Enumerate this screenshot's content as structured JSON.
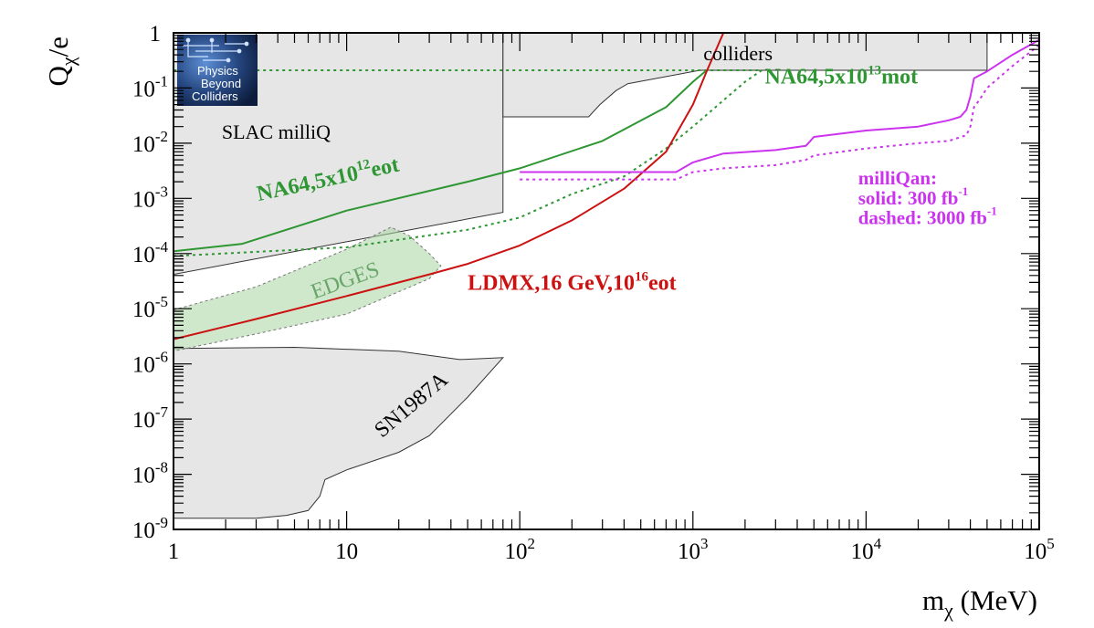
{
  "chart_data": {
    "type": "line",
    "title": "",
    "xlabel": {
      "base": "m",
      "sub": "χ",
      "tail": " (MeV)"
    },
    "ylabel": {
      "base": "Q",
      "sub": "χ",
      "tail": "/e"
    },
    "xscale": "log",
    "yscale": "log",
    "xlim": [
      1,
      100000
    ],
    "ylim": [
      1e-09,
      1
    ],
    "x_ticks": [
      {
        "value": 1,
        "base": "1",
        "exp": ""
      },
      {
        "value": 10,
        "base": "10",
        "exp": ""
      },
      {
        "value": 100,
        "base": "10",
        "exp": "2"
      },
      {
        "value": 1000,
        "base": "10",
        "exp": "3"
      },
      {
        "value": 10000,
        "base": "10",
        "exp": "4"
      },
      {
        "value": 100000,
        "base": "10",
        "exp": "5"
      }
    ],
    "y_ticks": [
      {
        "value": 1,
        "base": "1",
        "exp": ""
      },
      {
        "value": 0.1,
        "base": "10",
        "exp": "-1"
      },
      {
        "value": 0.01,
        "base": "10",
        "exp": "-2"
      },
      {
        "value": 0.001,
        "base": "10",
        "exp": "-3"
      },
      {
        "value": 0.0001,
        "base": "10",
        "exp": "-4"
      },
      {
        "value": 1e-05,
        "base": "10",
        "exp": "-5"
      },
      {
        "value": 1e-06,
        "base": "10",
        "exp": "-6"
      },
      {
        "value": 1e-07,
        "base": "10",
        "exp": "-7"
      },
      {
        "value": 1e-08,
        "base": "10",
        "exp": "-8"
      },
      {
        "value": 1e-09,
        "base": "10",
        "exp": "-9"
      }
    ],
    "regions": [
      {
        "name": "SLAC milliQ",
        "fill": "#e6e6e6",
        "stroke": "#333333",
        "opacity": 1,
        "points": [
          [
            1,
            1
          ],
          [
            80,
            1
          ],
          [
            80,
            0.00056
          ],
          [
            1,
            4.2e-05
          ]
        ]
      },
      {
        "name": "colliders",
        "fill": "#e6e6e6",
        "stroke": "#333333",
        "opacity": 1,
        "points": [
          [
            80,
            1
          ],
          [
            50000,
            1
          ],
          [
            50000,
            0.21
          ],
          [
            1100,
            0.21
          ],
          [
            420,
            0.12
          ],
          [
            360,
            0.09
          ],
          [
            290,
            0.05
          ],
          [
            250,
            0.03
          ],
          [
            80,
            0.03
          ]
        ]
      },
      {
        "name": "SN1987A",
        "fill": "#e6e6e6",
        "stroke": "#333333",
        "opacity": 1,
        "points": [
          [
            1,
            1.9e-06
          ],
          [
            5,
            2e-06
          ],
          [
            20,
            1.7e-06
          ],
          [
            45,
            1.2e-06
          ],
          [
            80,
            1.3e-06
          ],
          [
            50,
            2.5e-07
          ],
          [
            30,
            5e-08
          ],
          [
            20,
            2.5e-08
          ],
          [
            10,
            1.2e-08
          ],
          [
            7.5,
            8e-09
          ],
          [
            7,
            4e-09
          ],
          [
            6,
            2.2e-09
          ],
          [
            4.5,
            1.8e-09
          ],
          [
            3,
            1.6e-09
          ],
          [
            1,
            1.6e-09
          ]
        ]
      },
      {
        "name": "EDGES",
        "fill": "#a8d4a0",
        "stroke": "#777777",
        "opacity": 0.55,
        "dashed": true,
        "points": [
          [
            1,
            9.5e-06
          ],
          [
            3,
            2.5e-05
          ],
          [
            10,
            0.00012
          ],
          [
            18,
            0.0003
          ],
          [
            23,
            0.00021
          ],
          [
            30,
            0.0001
          ],
          [
            35,
            6e-05
          ],
          [
            30,
            3.5e-05
          ],
          [
            10,
            8e-06
          ],
          [
            3,
            3.5e-06
          ],
          [
            1,
            1.7e-06
          ]
        ]
      }
    ],
    "series": [
      {
        "name": "NA64,5x10^12 eot",
        "color": "#2e9632",
        "dash": "solid",
        "width": 2,
        "points": [
          [
            1,
            0.00011
          ],
          [
            2.5,
            0.00015
          ],
          [
            10,
            0.0006
          ],
          [
            50,
            0.002
          ],
          [
            100,
            0.0035
          ],
          [
            300,
            0.011
          ],
          [
            700,
            0.045
          ],
          [
            1000,
            0.13
          ],
          [
            1200,
            0.21
          ]
        ]
      },
      {
        "name": "NA64,5x10^13 mot",
        "color": "#2e9632",
        "dash": "dotted",
        "width": 2,
        "points": [
          [
            1,
            9e-05
          ],
          [
            10,
            0.00013
          ],
          [
            50,
            0.00027
          ],
          [
            100,
            0.00045
          ],
          [
            200,
            0.0012
          ],
          [
            400,
            0.0025
          ],
          [
            700,
            0.008
          ],
          [
            1000,
            0.02
          ],
          [
            1500,
            0.06
          ],
          [
            2000,
            0.13
          ],
          [
            2500,
            0.21
          ],
          [
            1200,
            0.21
          ],
          [
            1,
            0.21
          ]
        ]
      },
      {
        "name": "LDMX,16 GeV,10^16 eot",
        "color": "#cc1111",
        "dash": "solid",
        "width": 2,
        "points": [
          [
            1,
            2.8e-06
          ],
          [
            3,
            6.5e-06
          ],
          [
            10,
            1.7e-05
          ],
          [
            30,
            4.2e-05
          ],
          [
            50,
            6.5e-05
          ],
          [
            100,
            0.00014
          ],
          [
            200,
            0.0004
          ],
          [
            400,
            0.0015
          ],
          [
            700,
            0.007
          ],
          [
            1000,
            0.05
          ],
          [
            1200,
            0.2
          ],
          [
            1500,
            1.0
          ]
        ]
      },
      {
        "name": "milliQan 300 fb^-1",
        "color": "#cc33ee",
        "dash": "solid",
        "width": 2,
        "points": [
          [
            100,
            0.003
          ],
          [
            800,
            0.003
          ],
          [
            1000,
            0.0045
          ],
          [
            1500,
            0.0065
          ],
          [
            3000,
            0.0075
          ],
          [
            4500,
            0.009
          ],
          [
            5000,
            0.013
          ],
          [
            10000,
            0.017
          ],
          [
            20000,
            0.02
          ],
          [
            30000,
            0.026
          ],
          [
            35000,
            0.03
          ],
          [
            38000,
            0.04
          ],
          [
            40000,
            0.07
          ],
          [
            42000,
            0.15
          ],
          [
            50000,
            0.2
          ],
          [
            70000,
            0.4
          ],
          [
            100000,
            0.75
          ]
        ]
      },
      {
        "name": "milliQan 3000 fb^-1",
        "color": "#cc33ee",
        "dash": "dotted",
        "width": 2,
        "points": [
          [
            100,
            0.0022
          ],
          [
            800,
            0.0022
          ],
          [
            1000,
            0.003
          ],
          [
            1500,
            0.0035
          ],
          [
            3000,
            0.004
          ],
          [
            4500,
            0.005
          ],
          [
            5000,
            0.006
          ],
          [
            10000,
            0.008
          ],
          [
            20000,
            0.01
          ],
          [
            30000,
            0.011
          ],
          [
            38000,
            0.014
          ],
          [
            40000,
            0.02
          ],
          [
            42000,
            0.045
          ],
          [
            45000,
            0.06
          ],
          [
            50000,
            0.1
          ],
          [
            70000,
            0.25
          ],
          [
            100000,
            0.6
          ]
        ]
      }
    ],
    "annotations": [
      {
        "id": "slac",
        "text": "SLAC milliQ",
        "sup": "",
        "tail": "",
        "color": "#000000",
        "bold": false,
        "sans": true,
        "size": 22,
        "at": [
          1.9,
          0.012
        ],
        "rotate": 0
      },
      {
        "id": "colliders",
        "text": "colliders",
        "sup": "",
        "tail": "",
        "color": "#000000",
        "bold": false,
        "sans": true,
        "size": 22,
        "at": [
          1150,
          0.32
        ],
        "rotate": 0
      },
      {
        "id": "na64-eot",
        "text": "NA64,5x10",
        "sup": "12",
        "tail": "eot",
        "color": "#2e9632",
        "bold": true,
        "sans": false,
        "size": 24,
        "at": [
          3.1,
          0.0009
        ],
        "rotate": -12
      },
      {
        "id": "na64-mot",
        "text": "NA64,5x10",
        "sup": "13",
        "tail": "mot",
        "color": "#2e9632",
        "bold": true,
        "sans": false,
        "size": 24,
        "at": [
          2600,
          0.12
        ],
        "rotate": 0
      },
      {
        "id": "edges",
        "text": "EDGES",
        "sup": "",
        "tail": "",
        "color": "#6aa66a",
        "bold": false,
        "sans": false,
        "size": 24,
        "at": [
          6.5,
          1.5e-05
        ],
        "rotate": -20
      },
      {
        "id": "ldmx",
        "text": "LDMX,16 GeV,10",
        "sup": "16",
        "tail": "eot",
        "color": "#cc1111",
        "bold": true,
        "sans": false,
        "size": 24,
        "at": [
          50,
          2.2e-05
        ],
        "rotate": 0
      },
      {
        "id": "sn1987a",
        "text": "SN1987A",
        "sup": "",
        "tail": "",
        "color": "#000000",
        "bold": false,
        "sans": false,
        "size": 24,
        "at": [
          16,
          4.5e-08
        ],
        "rotate": -40
      },
      {
        "id": "milliqan-title",
        "text": "milliQan:",
        "sup": "",
        "tail": "",
        "color": "#cc33ee",
        "bold": true,
        "sans": false,
        "size": 21,
        "at": [
          9000,
          0.0018
        ],
        "rotate": 0
      },
      {
        "id": "milliqan-solid",
        "text": "solid: 300 fb",
        "sup": "-1",
        "tail": "",
        "color": "#cc33ee",
        "bold": true,
        "sans": false,
        "size": 21,
        "at": [
          9000,
          0.00078
        ],
        "rotate": 0
      },
      {
        "id": "milliqan-dashed",
        "text": "dashed: 3000 fb",
        "sup": "-1",
        "tail": "",
        "color": "#cc33ee",
        "bold": true,
        "sans": false,
        "size": 21,
        "at": [
          9000,
          0.00034
        ],
        "rotate": 0
      }
    ],
    "logo": {
      "lines": [
        "Physics",
        "Beyond",
        "Colliders"
      ]
    }
  }
}
